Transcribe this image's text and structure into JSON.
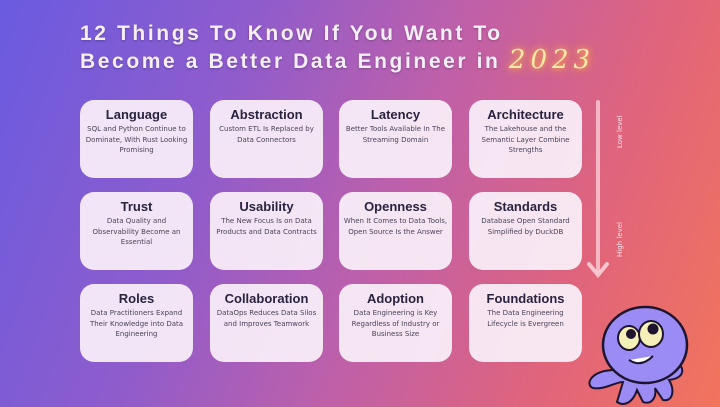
{
  "title": {
    "line1": "12 Things To Know If You Want To",
    "line2": "Become a Better Data Engineer in",
    "year": "2023"
  },
  "cards": [
    {
      "heading": "Language",
      "text": "SQL and Python Continue to Dominate, With Rust Looking Promising"
    },
    {
      "heading": "Abstraction",
      "text": "Custom ETL Is Replaced by Data Connectors"
    },
    {
      "heading": "Latency",
      "text": "Better Tools Available In The Streaming Domain"
    },
    {
      "heading": "Architecture",
      "text": "The Lakehouse and the Semantic Layer Combine Strengths"
    },
    {
      "heading": "Trust",
      "text": "Data Quality and Observability Become an Essential"
    },
    {
      "heading": "Usability",
      "text": "The New Focus Is on Data Products and Data Contracts"
    },
    {
      "heading": "Openness",
      "text": "When It Comes to Data Tools, Open Source Is the Answer"
    },
    {
      "heading": "Standards",
      "text": "Database Open Standard Simplified by DuckDB"
    },
    {
      "heading": "Roles",
      "text": "Data Practitioners Expand Their Knowledge into Data Engineering"
    },
    {
      "heading": "Collaboration",
      "text": "DataOps Reduces Data Silos and Improves Teamwork"
    },
    {
      "heading": "Adoption",
      "text": "Data Engineering is Key Regardless of Industry or Business Size"
    },
    {
      "heading": "Foundations",
      "text": "The Data Engineering Lifecycle is Evergreen"
    }
  ],
  "scale": {
    "top": "Low level",
    "bottom": "High level"
  },
  "colors": {
    "gradient_start": "#6a5be0",
    "gradient_end": "#f2745c",
    "card": "#faf0fa",
    "mascot": "#9b8cf5"
  }
}
